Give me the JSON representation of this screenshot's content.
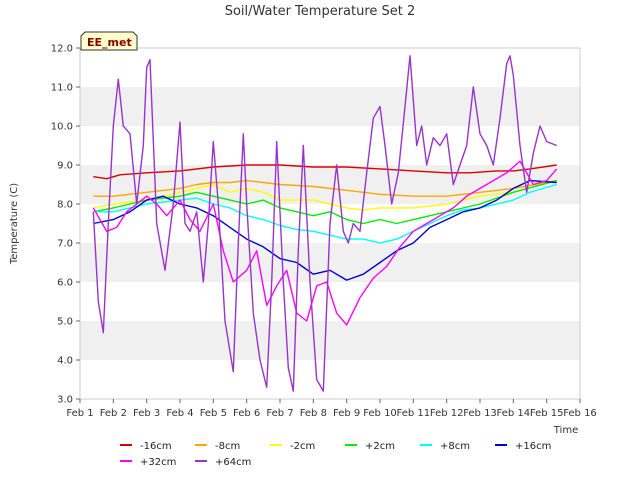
{
  "chart_data": {
    "type": "line",
    "title": "Soil/Water Temperature Set 2",
    "xlabel": "Time",
    "ylabel": "Temperature (C)",
    "tag": "EE_met",
    "xlim": [
      1,
      16
    ],
    "ylim": [
      3.0,
      12.0
    ],
    "x_ticks": [
      1,
      2,
      3,
      4,
      5,
      6,
      7,
      8,
      9,
      10,
      11,
      12,
      13,
      14,
      15,
      16
    ],
    "x_tick_labels": [
      "Feb 1",
      "Feb 2",
      "Feb 3",
      "Feb 4",
      "Feb 5",
      "Feb 6",
      "Feb 7",
      "Feb 8",
      "Feb 9",
      "Feb 10",
      "Feb 11",
      "Feb 12",
      "Feb 13",
      "Feb 14",
      "Feb 15",
      "Feb 16"
    ],
    "y_ticks": [
      3,
      4,
      5,
      6,
      7,
      8,
      9,
      10,
      11,
      12
    ],
    "y_tick_labels": [
      "3.0",
      "4.0",
      "5.0",
      "6.0",
      "7.0",
      "8.0",
      "9.0",
      "10.0",
      "11.0",
      "12.0"
    ],
    "grid": "horizontal bands",
    "legend_position": "bottom",
    "series": [
      {
        "name": "-16cm",
        "color": "#dd0000",
        "x": [
          1.4,
          1.8,
          2.2,
          3.0,
          4.0,
          5.0,
          6.0,
          7.0,
          8.0,
          9.0,
          10.0,
          11.0,
          12.0,
          12.7,
          13.5,
          14.0,
          14.5,
          15.3
        ],
        "y": [
          8.7,
          8.65,
          8.75,
          8.8,
          8.85,
          8.95,
          9.0,
          9.0,
          8.95,
          8.95,
          8.9,
          8.85,
          8.8,
          8.8,
          8.85,
          8.85,
          8.9,
          9.0
        ]
      },
      {
        "name": "-8cm",
        "color": "#ffa500",
        "x": [
          1.4,
          2.0,
          3.0,
          4.0,
          4.5,
          5.0,
          5.5,
          6.0,
          6.5,
          7.0,
          8.0,
          9.0,
          9.5,
          10.0,
          11.0,
          12.0,
          13.0,
          14.0,
          15.3
        ],
        "y": [
          8.2,
          8.2,
          8.3,
          8.4,
          8.5,
          8.55,
          8.55,
          8.6,
          8.55,
          8.5,
          8.45,
          8.35,
          8.3,
          8.25,
          8.2,
          8.2,
          8.3,
          8.4,
          8.6
        ]
      },
      {
        "name": "-2cm",
        "color": "#ffff00",
        "x": [
          1.4,
          2.0,
          3.0,
          4.0,
          4.5,
          5.0,
          5.5,
          6.0,
          6.5,
          7.0,
          8.0,
          9.0,
          9.5,
          10.0,
          11.0,
          12.0,
          13.0,
          14.0,
          15.3
        ],
        "y": [
          7.9,
          8.0,
          8.1,
          8.3,
          8.4,
          8.5,
          8.3,
          8.4,
          8.3,
          8.1,
          8.1,
          7.9,
          7.85,
          7.9,
          7.9,
          8.0,
          8.2,
          8.3,
          8.6
        ]
      },
      {
        "name": "+2cm",
        "color": "#00ee00",
        "x": [
          1.4,
          2.0,
          3.0,
          4.0,
          4.5,
          5.0,
          5.5,
          6.0,
          6.5,
          7.0,
          7.5,
          8.0,
          8.5,
          9.0,
          9.5,
          10.0,
          10.5,
          11.0,
          11.5,
          12.0,
          13.0,
          14.0,
          15.3
        ],
        "y": [
          7.8,
          7.9,
          8.1,
          8.2,
          8.3,
          8.2,
          8.1,
          8.0,
          8.1,
          7.9,
          7.8,
          7.7,
          7.8,
          7.6,
          7.5,
          7.6,
          7.5,
          7.6,
          7.7,
          7.8,
          8.0,
          8.3,
          8.6
        ]
      },
      {
        "name": "+8cm",
        "color": "#00ffff",
        "x": [
          1.4,
          2.0,
          3.0,
          4.0,
          4.5,
          5.0,
          5.5,
          6.0,
          6.5,
          7.0,
          7.5,
          8.0,
          8.5,
          9.0,
          9.5,
          10.0,
          10.5,
          11.0,
          11.5,
          12.0,
          12.5,
          13.0,
          13.5,
          14.0,
          14.5,
          15.3
        ],
        "y": [
          7.8,
          7.8,
          8.0,
          8.1,
          8.15,
          8.0,
          7.9,
          7.7,
          7.6,
          7.45,
          7.35,
          7.3,
          7.2,
          7.1,
          7.1,
          7.0,
          7.1,
          7.3,
          7.5,
          7.7,
          7.85,
          7.9,
          8.0,
          8.1,
          8.3,
          8.5
        ]
      },
      {
        "name": "+16cm",
        "color": "#0000cc",
        "x": [
          1.4,
          2.0,
          2.5,
          3.0,
          3.5,
          4.0,
          4.5,
          5.0,
          5.5,
          6.0,
          6.5,
          7.0,
          7.5,
          8.0,
          8.5,
          9.0,
          9.5,
          10.0,
          10.5,
          11.0,
          11.5,
          12.0,
          12.5,
          13.0,
          13.5,
          14.0,
          14.5,
          15.3
        ],
        "y": [
          7.5,
          7.6,
          7.8,
          8.1,
          8.2,
          8.0,
          7.9,
          7.7,
          7.4,
          7.1,
          6.9,
          6.6,
          6.5,
          6.2,
          6.3,
          6.05,
          6.2,
          6.5,
          6.8,
          7.0,
          7.4,
          7.6,
          7.8,
          7.9,
          8.1,
          8.4,
          8.6,
          8.55
        ]
      },
      {
        "name": "+32cm",
        "color": "#ff00ff",
        "x": [
          1.4,
          1.8,
          2.1,
          2.4,
          2.7,
          3.0,
          3.3,
          3.6,
          4.0,
          4.3,
          4.6,
          5.0,
          5.3,
          5.6,
          6.0,
          6.3,
          6.6,
          6.9,
          7.2,
          7.5,
          7.8,
          8.1,
          8.4,
          8.7,
          9.0,
          9.4,
          9.8,
          10.2,
          10.6,
          11.0,
          11.4,
          11.8,
          12.2,
          12.6,
          13.0,
          13.4,
          13.8,
          14.2,
          14.6,
          15.0,
          15.3
        ],
        "y": [
          7.9,
          7.3,
          7.4,
          7.8,
          8.0,
          8.2,
          8.0,
          7.7,
          8.1,
          7.6,
          7.3,
          8.0,
          6.8,
          6.0,
          6.3,
          6.8,
          5.4,
          5.9,
          6.3,
          5.2,
          5.0,
          5.9,
          6.0,
          5.2,
          4.9,
          5.6,
          6.1,
          6.4,
          6.9,
          7.3,
          7.5,
          7.7,
          7.9,
          8.2,
          8.4,
          8.6,
          8.8,
          9.1,
          8.5,
          8.6,
          8.9
        ]
      },
      {
        "name": "+64cm",
        "color": "#9933cc",
        "x": [
          1.4,
          1.55,
          1.7,
          1.85,
          2.0,
          2.15,
          2.3,
          2.5,
          2.7,
          2.9,
          3.0,
          3.1,
          3.3,
          3.55,
          3.8,
          4.0,
          4.15,
          4.3,
          4.5,
          4.7,
          4.85,
          5.0,
          5.15,
          5.35,
          5.6,
          5.75,
          5.9,
          6.0,
          6.2,
          6.4,
          6.6,
          6.75,
          6.9,
          7.1,
          7.25,
          7.4,
          7.55,
          7.7,
          7.9,
          8.1,
          8.3,
          8.5,
          8.7,
          8.9,
          9.05,
          9.2,
          9.4,
          9.6,
          9.8,
          10.0,
          10.15,
          10.35,
          10.55,
          10.75,
          10.9,
          11.1,
          11.25,
          11.4,
          11.6,
          11.8,
          12.0,
          12.2,
          12.4,
          12.6,
          12.8,
          13.0,
          13.2,
          13.4,
          13.6,
          13.8,
          13.9,
          14.0,
          14.2,
          14.4,
          14.6,
          14.8,
          15.0,
          15.3
        ],
        "y": [
          7.8,
          5.5,
          4.7,
          7.5,
          10.0,
          11.2,
          10.0,
          9.8,
          8.0,
          9.5,
          11.5,
          11.7,
          7.5,
          6.3,
          8.0,
          10.1,
          7.5,
          7.3,
          7.8,
          6.0,
          7.5,
          9.6,
          8.0,
          5.0,
          3.7,
          7.0,
          9.8,
          8.0,
          5.2,
          4.0,
          3.3,
          6.0,
          9.6,
          6.0,
          3.8,
          3.2,
          6.8,
          9.5,
          6.0,
          3.5,
          3.2,
          7.5,
          9.0,
          7.3,
          7.0,
          7.5,
          7.3,
          8.8,
          10.2,
          10.5,
          9.5,
          8.0,
          8.8,
          10.5,
          11.8,
          9.5,
          10.0,
          9.0,
          9.7,
          9.5,
          9.8,
          8.5,
          9.0,
          9.5,
          11.0,
          9.8,
          9.5,
          9.0,
          10.2,
          11.6,
          11.8,
          11.3,
          9.5,
          8.3,
          9.3,
          10.0,
          9.6,
          9.5
        ]
      }
    ]
  }
}
